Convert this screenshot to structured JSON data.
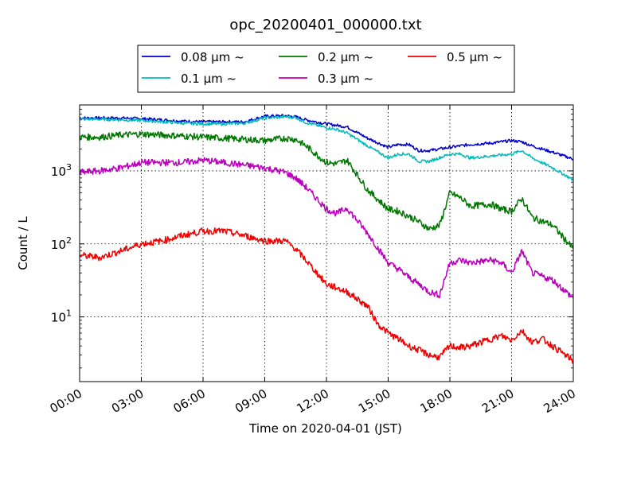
{
  "chart_data": {
    "type": "line",
    "title": "opc_20200401_000000.txt",
    "xlabel": "Time on 2020-04-01 (JST)",
    "ylabel": "Count / L",
    "x_ticks": [
      "00:00",
      "03:00",
      "06:00",
      "09:00",
      "12:00",
      "15:00",
      "18:00",
      "21:00",
      "24:00"
    ],
    "x_units": "hours",
    "xlim": [
      0,
      24
    ],
    "y_scale": "log",
    "ylim": [
      1.3,
      8000
    ],
    "y_ticks": [
      {
        "value": 10,
        "base": "10",
        "exp": "1"
      },
      {
        "value": 100,
        "base": "10",
        "exp": "2"
      },
      {
        "value": 1000,
        "base": "10",
        "exp": "3"
      }
    ],
    "grid": true,
    "legend_position": "top-center",
    "series": [
      {
        "name": "0.08 μm ~",
        "color": "#0000cc",
        "x": [
          0,
          1,
          2,
          3,
          4,
          5,
          6,
          7,
          8,
          9,
          10,
          10.5,
          11,
          12,
          12.5,
          13,
          14,
          15,
          15.5,
          16,
          16.5,
          17,
          18,
          18.5,
          19,
          20,
          21,
          21.5,
          22,
          23,
          24
        ],
        "y": [
          5300,
          5300,
          5300,
          5200,
          5000,
          4800,
          4700,
          4700,
          4700,
          5600,
          5700,
          5500,
          5000,
          4400,
          4200,
          4000,
          2800,
          2100,
          2300,
          2300,
          1900,
          1900,
          2100,
          2200,
          2300,
          2400,
          2600,
          2500,
          2200,
          1800,
          1450
        ]
      },
      {
        "name": "0.1 μm ~",
        "color": "#00bbbb",
        "x": [
          0,
          1,
          2,
          3,
          4,
          5,
          6,
          7,
          8,
          9,
          10,
          10.5,
          11,
          12,
          12.5,
          13,
          14,
          15,
          15.5,
          16,
          16.5,
          17,
          18,
          18.5,
          19,
          20,
          21,
          21.5,
          22,
          23,
          24
        ],
        "y": [
          5100,
          5100,
          5000,
          4900,
          4700,
          4500,
          4400,
          4400,
          4500,
          5300,
          5500,
          5400,
          4600,
          3900,
          3700,
          3300,
          2200,
          1500,
          1700,
          1700,
          1350,
          1350,
          1700,
          1700,
          1500,
          1600,
          1700,
          1900,
          1500,
          1100,
          750
        ]
      },
      {
        "name": "0.2 μm ~",
        "color": "#007700",
        "x": [
          0,
          1,
          2,
          3,
          4,
          5,
          6,
          7,
          8,
          9,
          10,
          10.5,
          11,
          12,
          12.5,
          13,
          14,
          15,
          15.5,
          16,
          16.5,
          17,
          17.5,
          18,
          18.5,
          19,
          20,
          20.5,
          21,
          21.5,
          22,
          23,
          24
        ],
        "y": [
          2900,
          2900,
          3100,
          3200,
          3100,
          3000,
          2900,
          2800,
          2700,
          2600,
          2800,
          2700,
          2200,
          1300,
          1250,
          1400,
          550,
          300,
          280,
          240,
          200,
          160,
          180,
          500,
          430,
          330,
          350,
          300,
          280,
          420,
          230,
          180,
          85
        ]
      },
      {
        "name": "0.3 μm ~",
        "color": "#bb00bb",
        "x": [
          0,
          1,
          2,
          3,
          4,
          5,
          6,
          7,
          8,
          9,
          10,
          10.5,
          11,
          12,
          12.5,
          13,
          14,
          15,
          15.5,
          16,
          16.5,
          17,
          17.5,
          18,
          18.5,
          19,
          20,
          20.5,
          21,
          21.5,
          22,
          23,
          24
        ],
        "y": [
          950,
          1000,
          1100,
          1300,
          1300,
          1300,
          1400,
          1300,
          1200,
          1100,
          950,
          800,
          600,
          300,
          260,
          310,
          140,
          55,
          45,
          35,
          28,
          22,
          20,
          55,
          60,
          55,
          60,
          55,
          40,
          80,
          40,
          32,
          18
        ]
      },
      {
        "name": "0.5 μm ~",
        "color": "#ee0000",
        "x": [
          0,
          1,
          2,
          3,
          4,
          5,
          6,
          7,
          8,
          9,
          10,
          10.5,
          11,
          12,
          12.5,
          13,
          14,
          14.5,
          15,
          15.5,
          16,
          16.5,
          17,
          17.5,
          18,
          18.5,
          19,
          20,
          20.5,
          21,
          21.5,
          22,
          22.5,
          23,
          24
        ],
        "y": [
          70,
          65,
          80,
          100,
          110,
          130,
          150,
          150,
          130,
          110,
          110,
          85,
          60,
          28,
          25,
          22,
          14,
          8,
          6,
          5,
          4,
          3.5,
          3,
          2.8,
          4,
          3.8,
          4,
          5,
          5.5,
          4.8,
          6.5,
          4.5,
          5,
          4,
          2.5
        ]
      }
    ]
  }
}
